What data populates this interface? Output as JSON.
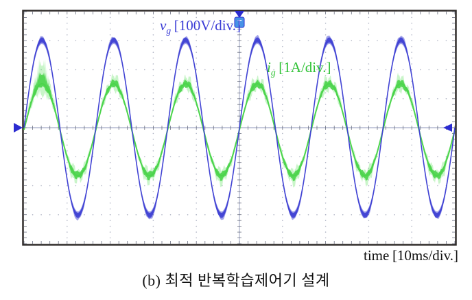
{
  "figure": {
    "caption": "(b) 최적 반복학습제어기 설계"
  },
  "scope": {
    "trigger_label": "T",
    "voltage_label": {
      "var": "v",
      "sub": "g",
      "units": "[100V/div.]"
    },
    "current_label": {
      "var": "i",
      "sub": "g",
      "units": "[1A/div.]"
    },
    "time_label": {
      "prefix": "time",
      "units": "[10ms/div.]"
    }
  },
  "colors": {
    "vg_trace": "#4244d4",
    "ig_trace": "#4cd44c",
    "ig_halo": "#72e472",
    "marker_blue": "#2b2bd0",
    "trigger_box": "#4792e6",
    "axis": "#8d96b8",
    "grid_dots": "#b0b4c4",
    "ticks": "#6a6f80",
    "border": "#2e2a28",
    "text": "#111111"
  },
  "chart_data": {
    "type": "line",
    "title": "",
    "xlabel": "time [10ms/div.]",
    "ylabel": "",
    "grid": "dotted oscilloscope graticule",
    "x_divisions": 10,
    "y_divisions": 8,
    "x_units_per_div": "10ms",
    "x_range_div": [
      0,
      10
    ],
    "y_range_div": [
      -4,
      4
    ],
    "legend_position": "inline-annotations",
    "series": [
      {
        "name": "vg",
        "label": "vg [100V/div.]",
        "color": "#4244d4",
        "scale_per_div": "100V",
        "amplitude_div": 3.0,
        "peak_value": "300V",
        "cycles_visible": 6,
        "period_div": 1.667,
        "period_ms": 16.7,
        "frequency_hz": 60,
        "phase_at_left_deg": 0,
        "zero_offset_div": 0,
        "one_cycle_samples_deg": [
          0,
          30,
          60,
          90,
          120,
          150,
          180,
          210,
          240,
          270,
          300,
          330,
          360
        ],
        "one_cycle_samples_div": [
          0,
          1.5,
          2.6,
          3.0,
          2.6,
          1.5,
          0,
          -1.5,
          -2.6,
          -3.0,
          -2.6,
          -1.5,
          0
        ],
        "repeats": 6
      },
      {
        "name": "ig",
        "label": "ig [1A/div.]",
        "color": "#4cd44c",
        "scale_per_div": "1A",
        "amplitude_div": 1.65,
        "peak_value": "1.65A",
        "cycles_visible": 6,
        "period_div": 1.667,
        "period_ms": 16.7,
        "frequency_hz": 60,
        "phase_at_left_deg": 0,
        "zero_offset_div": -0.07,
        "appearance": "thick noisy band, transient spike on first positive peak",
        "one_cycle_samples_deg": [
          0,
          30,
          60,
          90,
          120,
          150,
          180,
          210,
          240,
          270,
          300,
          330,
          360
        ],
        "one_cycle_samples_div": [
          0,
          0.83,
          1.43,
          1.65,
          1.43,
          0.83,
          0,
          -0.83,
          -1.43,
          -1.65,
          -1.43,
          -0.83,
          0
        ],
        "repeats": 6
      }
    ],
    "annotations": [
      {
        "text": "vg [100V/div.]",
        "color": "#3b3cd6",
        "position": "upper-left-of-center"
      },
      {
        "text": "ig [1A/div.]",
        "color": "#2fc235",
        "position": "right-of-center-upper"
      },
      {
        "text": "time [10ms/div.]",
        "color": "#111111",
        "position": "below-right"
      },
      {
        "text": "T",
        "color": "#ffffff",
        "position": "trigger-marker-top-center"
      }
    ]
  }
}
